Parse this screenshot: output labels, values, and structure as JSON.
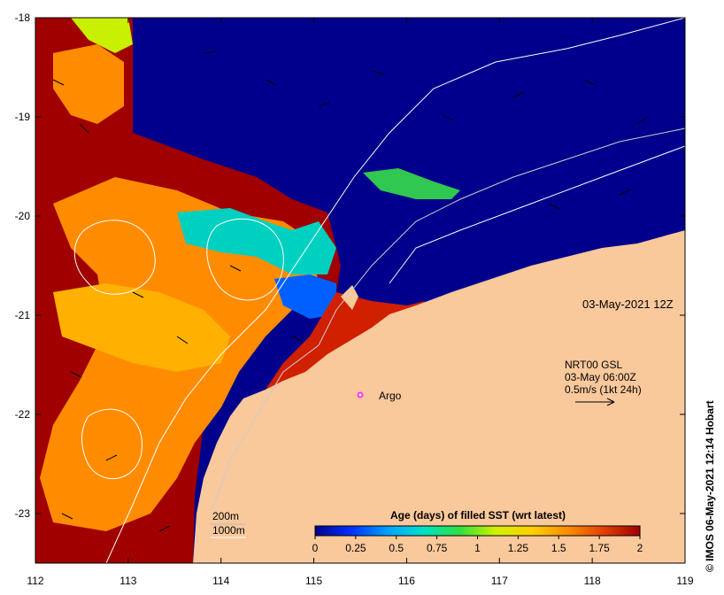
{
  "map": {
    "lon_range": [
      112,
      119
    ],
    "lat_range": [
      -23.5,
      -18
    ],
    "x_ticks": [
      {
        "value": 112,
        "label": "112"
      },
      {
        "value": 113,
        "label": "113"
      },
      {
        "value": 114,
        "label": "114"
      },
      {
        "value": 115,
        "label": "115"
      },
      {
        "value": 116,
        "label": "116"
      },
      {
        "value": 117,
        "label": "117"
      },
      {
        "value": 118,
        "label": "118"
      },
      {
        "value": 119,
        "label": "119"
      }
    ],
    "y_ticks": [
      {
        "value": -18,
        "label": "-18"
      },
      {
        "value": -19,
        "label": "-19"
      },
      {
        "value": -20,
        "label": "-20"
      },
      {
        "value": -21,
        "label": "-21"
      },
      {
        "value": -22,
        "label": "-22"
      },
      {
        "value": -23,
        "label": "-23"
      }
    ],
    "date_label": "03-May-2021 12Z",
    "current_source": {
      "line1": "NRT00 GSL",
      "line2": "03-May 06:00Z",
      "line3": "0.5m/s (1kt 24h)"
    },
    "argo": {
      "label": "Argo",
      "lon": 115.5,
      "lat": -21.85,
      "color": "#ff33ff"
    },
    "isobaths": {
      "label_200": "200m",
      "label_1000": "1000m"
    },
    "credit": "© IMOS 06-May-2021 12:14 Hobart",
    "land_color": "#f9c89b",
    "ocean_deep_color": "#00008c"
  },
  "colorbar": {
    "title": "Age (days) of filled SST (wrt latest)",
    "min": 0,
    "max": 2,
    "ticks": [
      {
        "value": 0,
        "label": "0"
      },
      {
        "value": 0.25,
        "label": "0.25"
      },
      {
        "value": 0.5,
        "label": "0.5"
      },
      {
        "value": 0.75,
        "label": "0.75"
      },
      {
        "value": 1,
        "label": "1"
      },
      {
        "value": 1.25,
        "label": "1.25"
      },
      {
        "value": 1.5,
        "label": "1.5"
      },
      {
        "value": 1.75,
        "label": "1.75"
      },
      {
        "value": 2,
        "label": "2"
      }
    ],
    "stops": [
      "#00008c",
      "#0030ff",
      "#00a0ff",
      "#00e0c8",
      "#30e040",
      "#d0f000",
      "#ffd000",
      "#ff8c00",
      "#e04000",
      "#a00000"
    ]
  }
}
